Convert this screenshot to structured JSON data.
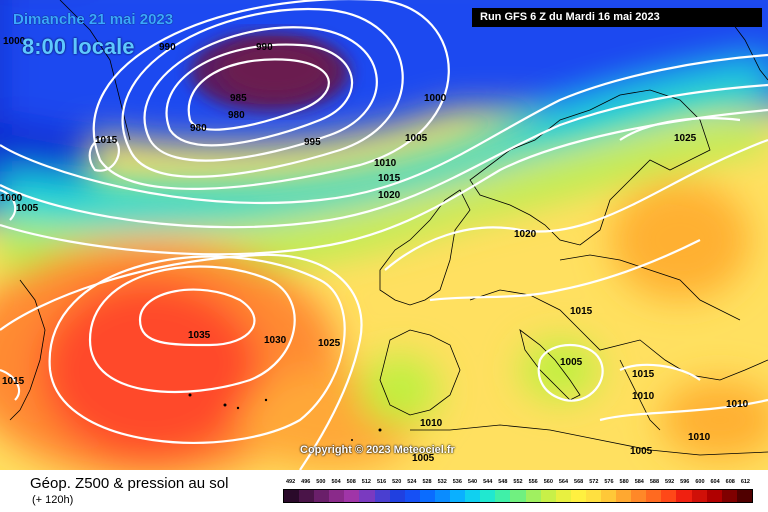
{
  "header": {
    "date_line": "Dimanche 21 mai 2023",
    "time_line": "8:00 locale",
    "run_info": "Run GFS 6 Z du Mardi 16 mai 2023"
  },
  "map": {
    "copyright": "Copyright © 2023 Meteociel.fr",
    "isobar_labels": [
      "1000",
      "990",
      "990",
      "985",
      "980",
      "980",
      "995",
      "1000",
      "1005",
      "1010",
      "1015",
      "1020",
      "1015",
      "1000",
      "1005",
      "1035",
      "1030",
      "1025",
      "1020",
      "1015",
      "1005",
      "1025",
      "1015",
      "1010",
      "1010",
      "1010",
      "1005",
      "1010",
      "1005",
      "1015"
    ]
  },
  "legend": {
    "parameter": "Géop. Z500 & pression au sol",
    "lead_time": "(+ 120h)",
    "scale_values": [
      "492",
      "496",
      "500",
      "504",
      "508",
      "512",
      "516",
      "520",
      "524",
      "528",
      "532",
      "536",
      "540",
      "544",
      "548",
      "552",
      "556",
      "560",
      "564",
      "568",
      "572",
      "576",
      "580",
      "584",
      "588",
      "592",
      "596",
      "600",
      "604",
      "608",
      "612"
    ],
    "scale_colors": [
      "#2a0a2a",
      "#4a1448",
      "#6a1f6a",
      "#8a2a8a",
      "#a035a8",
      "#7a3ac0",
      "#4a3fd0",
      "#2040e0",
      "#1650f5",
      "#0a6cff",
      "#0a8cff",
      "#0ab0ff",
      "#10d0f0",
      "#20e8d0",
      "#40f0a8",
      "#70f080",
      "#a0f060",
      "#c8f048",
      "#e8f040",
      "#fff040",
      "#ffe040",
      "#ffc838",
      "#ffa830",
      "#ff8828",
      "#ff6a20",
      "#ff4818",
      "#f02010",
      "#d01008",
      "#b00000",
      "#800000",
      "#500000"
    ]
  }
}
